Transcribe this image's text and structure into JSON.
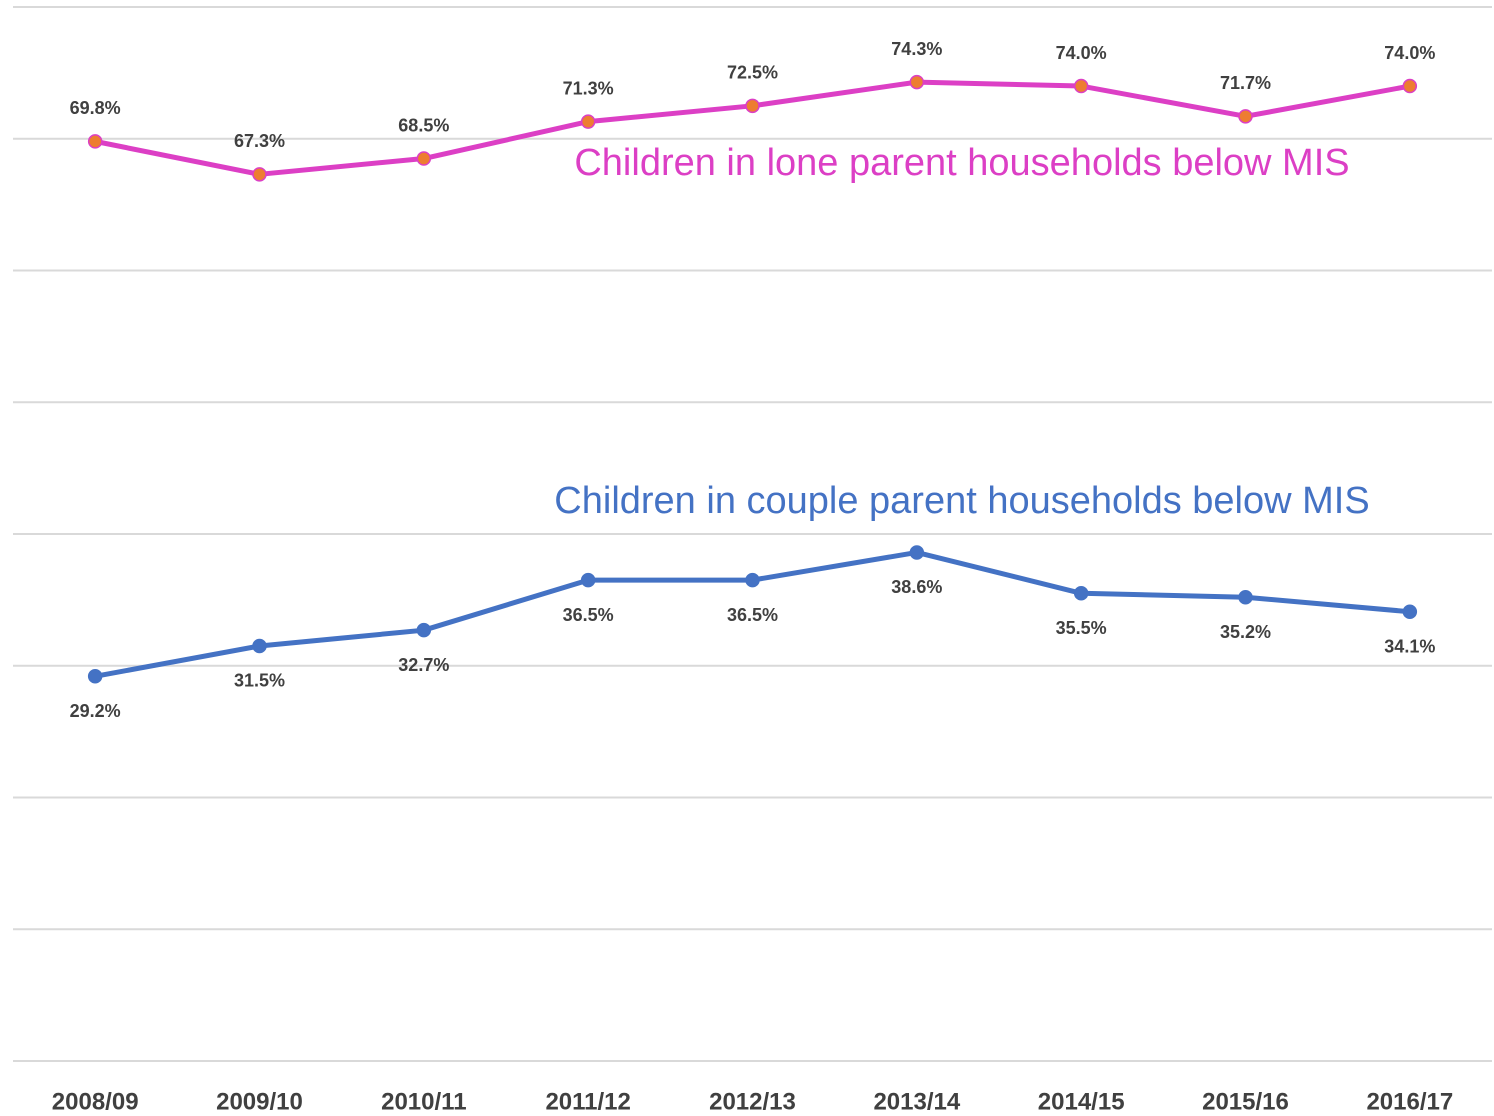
{
  "chart_data": {
    "type": "line",
    "categories": [
      "2008/09",
      "2009/10",
      "2010/11",
      "2011/12",
      "2012/13",
      "2013/14",
      "2014/15",
      "2015/16",
      "2016/17"
    ],
    "series": [
      {
        "name": "Children in lone parent households below MIS",
        "color": "#dc3fc5",
        "marker_color": "#ed7d31",
        "values": [
          69.8,
          67.3,
          68.5,
          71.3,
          72.5,
          74.3,
          74.0,
          71.7,
          74.0
        ],
        "value_labels": [
          "69.8%",
          "67.3%",
          "68.5%",
          "71.3%",
          "72.5%",
          "74.3%",
          "74.0%",
          "71.7%",
          "74.0%"
        ]
      },
      {
        "name": "Children in couple parent households below MIS",
        "color": "#4472c4",
        "marker_color": "#4472c4",
        "values": [
          29.2,
          31.5,
          32.7,
          36.5,
          36.5,
          38.6,
          35.5,
          35.2,
          34.1
        ],
        "value_labels": [
          "29.2%",
          "31.5%",
          "32.7%",
          "36.5%",
          "36.5%",
          "38.6%",
          "35.5%",
          "35.2%",
          "34.1%"
        ]
      }
    ],
    "ylim": [
      0,
      80
    ],
    "yticks": [
      0,
      10,
      20,
      30,
      40,
      50,
      60,
      70,
      80
    ],
    "grid": true
  }
}
